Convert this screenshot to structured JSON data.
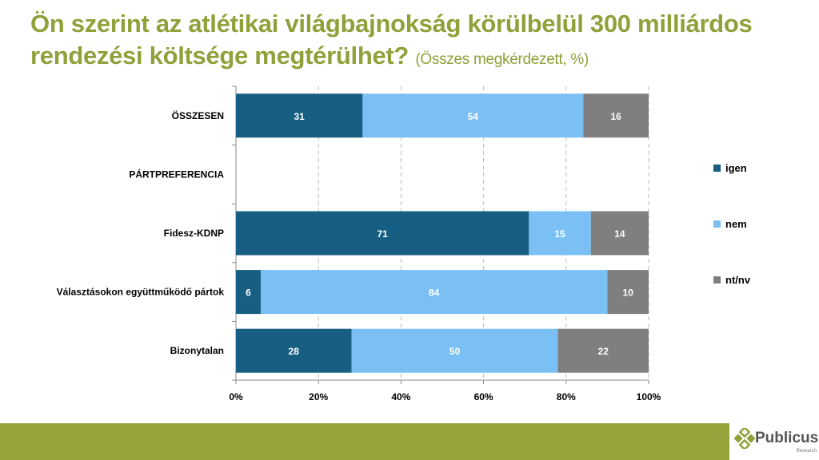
{
  "title": {
    "main": "Ön szerint az atlétikai világbajnokság körülbelül 300 milliárdos rendezési költsége megtérülhet?",
    "sub": "(Összes megkérdezett, %)"
  },
  "chart_data": {
    "type": "bar",
    "orientation": "horizontal",
    "stacked": "percent",
    "categories": [
      "ÖSSZESEN",
      "PÁRTPREFERENCIA",
      "Fidesz-KDNP",
      "Választásokon együttműködő pártok",
      "Bizonytalan"
    ],
    "series": [
      {
        "name": "igen",
        "color": "#175f82",
        "values": [
          31,
          null,
          71,
          6,
          28
        ]
      },
      {
        "name": "nem",
        "color": "#7ac0f4",
        "values": [
          54,
          null,
          15,
          84,
          50
        ]
      },
      {
        "name": "nt/nv",
        "color": "#7f7f7f",
        "values": [
          16,
          null,
          14,
          10,
          22
        ]
      }
    ],
    "xticks": [
      "0%",
      "20%",
      "40%",
      "60%",
      "80%",
      "100%"
    ],
    "xlim": [
      0,
      100
    ],
    "grid": true,
    "legend": "right"
  },
  "logo": {
    "name": "Publicus",
    "tagline": "Research"
  }
}
